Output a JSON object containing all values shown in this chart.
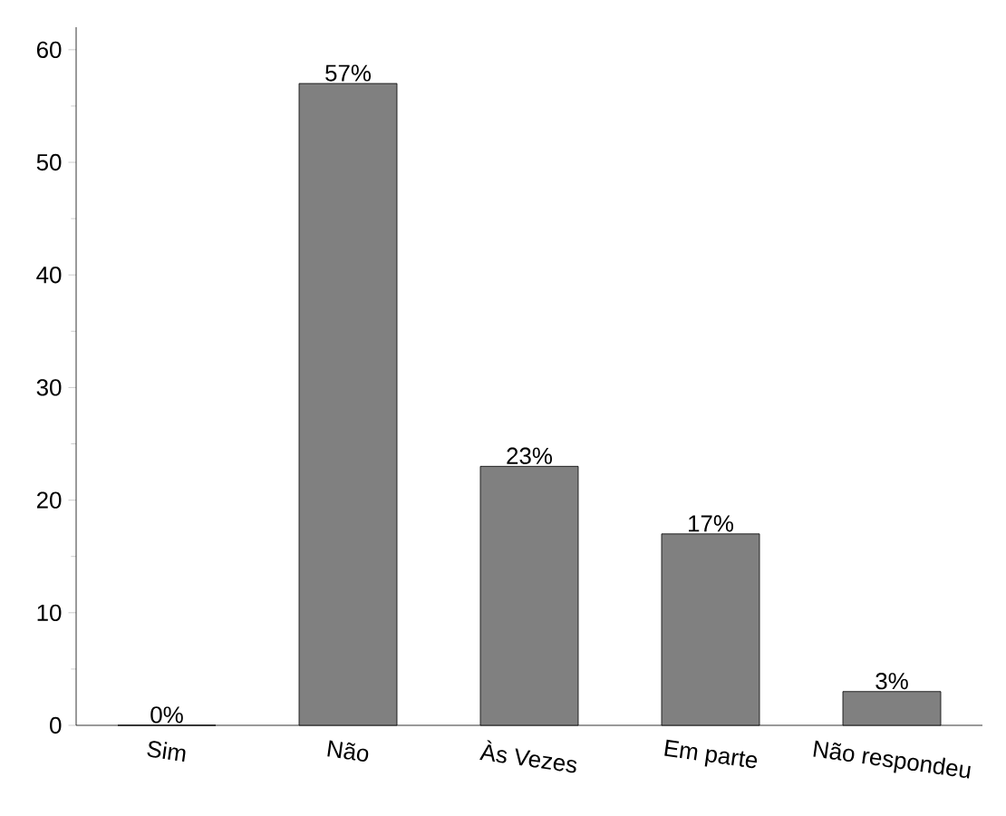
{
  "chart_data": {
    "type": "bar",
    "categories": [
      "Sim",
      "Não",
      "Às Vezes",
      "Em parte",
      "Não respondeu"
    ],
    "values": [
      0,
      57,
      23,
      17,
      3
    ],
    "value_labels": [
      "0%",
      "57%",
      "23%",
      "17%",
      "3%"
    ],
    "color": "#808080",
    "ylim": [
      0,
      62
    ],
    "yticks": [
      0,
      10,
      20,
      30,
      40,
      50,
      60
    ],
    "grid": false
  }
}
